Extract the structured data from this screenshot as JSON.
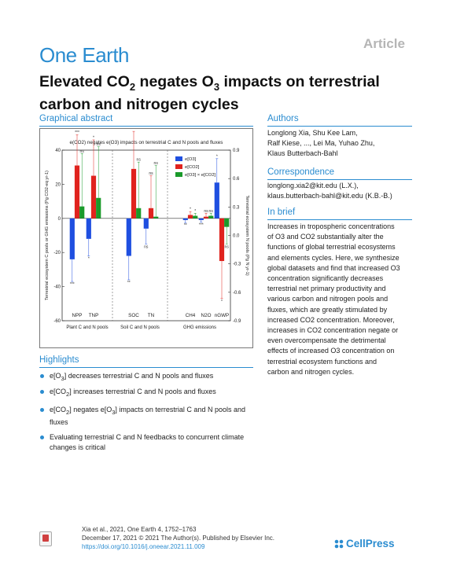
{
  "header": {
    "article_tag": "Article",
    "journal": "One Earth"
  },
  "title": {
    "pre": "Elevated CO",
    "sub1": "2",
    "mid": " negates O",
    "sub2": "3",
    "post": " impacts on terrestrial carbon and nitrogen cycles"
  },
  "sections": {
    "graphical_abstract": "Graphical abstract",
    "authors": "Authors",
    "correspondence": "Correspondence",
    "in_brief": "In brief",
    "highlights": "Highlights"
  },
  "authors": {
    "line1": "Longlong Xia, Shu Kee Lam,",
    "line2": "Ralf Kiese, ..., Lei Ma, Yuhao Zhu,",
    "line3": "Klaus Butterbach-Bahl"
  },
  "correspondence": {
    "line1": "longlong.xia2@kit.edu (L.X.),",
    "line2": "klaus.butterbach-bahl@kit.edu (K.B.-B.)"
  },
  "in_brief": [
    "Increases in tropospheric concentrations",
    "of O3 and CO2 substantially alter the",
    "functions of global terrestrial ecosystems",
    "and elements cycles. Here, we synthesize",
    "global datasets and find that increased O3",
    "concentration significantly decreases",
    "terrestrial net primary productivity and",
    "various carbon and nitrogen pools and",
    "fluxes, which are greatly stimulated by",
    "increased CO2 concentration. Moreover,",
    "increases in CO2 concentration negate or",
    "even overcompensate the detrimental",
    "effects of increased O3 concentration on",
    "terrestrial ecosystem functions and",
    "carbon and nitrogen cycles."
  ],
  "highlights": [
    {
      "a": "e[O",
      "s": "3",
      "b": "] decreases terrestrial C and N pools and fluxes",
      "c": ""
    },
    {
      "a": "e[CO",
      "s": "2",
      "b": "] increases terrestrial C and N pools and fluxes",
      "c": ""
    },
    {
      "a": "e[CO",
      "s": "2",
      "b": "] negates e[O",
      "s2": "3",
      "c": "] impacts on terrestrial C and N pools and fluxes"
    },
    {
      "a": "Evaluating terrestrial C and N feedbacks to concurrent climate changes is critical",
      "s": "",
      "b": "",
      "c": ""
    }
  ],
  "footer": {
    "line1": "Xia et al., 2021, One Earth 4, 1752–1763",
    "line2": "December 17, 2021 © 2021 The Author(s). Published by Elsevier Inc.",
    "doi": "https://doi.org/10.1016/j.oneear.2021.11.009",
    "brand": "CellPress"
  },
  "colors": {
    "accent": "#2a8cd0",
    "o3": "#1f4fe0",
    "co2": "#e0231e",
    "both": "#1a9a2a"
  },
  "chart_data": {
    "type": "bar",
    "title": "e(CO2) negates e(O3) impacts on terrestrial C and N pools and fluxes",
    "ylabel_left": "Terrestrial ecosystem C pools or GHG emissions (Pg CO2-eq yr-1)",
    "ylabel_right": "Terrestrial ecosystem N pools (Pg N yr-1)",
    "ylim_left": [
      -60,
      40
    ],
    "ylim_right": [
      -0.9,
      0.9
    ],
    "yticks_left": [
      "40",
      "20",
      "0",
      "-20",
      "-40",
      "-60"
    ],
    "yticks_right": [
      "0.9",
      "0.6",
      "0.3",
      "0.0",
      "-0.3",
      "-0.6",
      "-0.9"
    ],
    "legend": [
      "e[O3]",
      "e[CO2]",
      "e[O3] × e[CO2]"
    ],
    "legend_position": "top-right",
    "groups": [
      "Plant C and N pools",
      "Soil C and N pools",
      "GHG emissions"
    ],
    "categories": [
      "NPP",
      "TNP",
      "SOC",
      "TN",
      "CH4",
      "N2O",
      "nGWP"
    ],
    "series": [
      {
        "name": "e[O3]",
        "values": [
          -24,
          -12,
          -22,
          -6,
          -1,
          -1,
          21
        ],
        "errors": [
          13,
          10,
          14,
          9,
          1.5,
          1.2,
          14
        ],
        "sig": [
          "***",
          "*",
          "**",
          "ns",
          "**",
          "***",
          "*"
        ]
      },
      {
        "name": "e[CO2]",
        "values": [
          31,
          25,
          29,
          6,
          2,
          1,
          -25
        ],
        "errors": [
          18,
          21,
          22,
          19,
          2,
          2,
          22
        ],
        "sig": [
          "***",
          "*",
          "***",
          "ns",
          "*",
          "ns",
          "*"
        ]
      },
      {
        "name": "e[O3] × e[CO2]",
        "values": [
          7,
          12,
          6,
          1,
          1.5,
          1.5,
          -5
        ],
        "errors": [
          31,
          30,
          27,
          30,
          1.5,
          1.5,
          10
        ],
        "sig": [
          "ns",
          "ns",
          "ns",
          "ns",
          "*",
          "ns",
          "ns"
        ]
      }
    ]
  }
}
